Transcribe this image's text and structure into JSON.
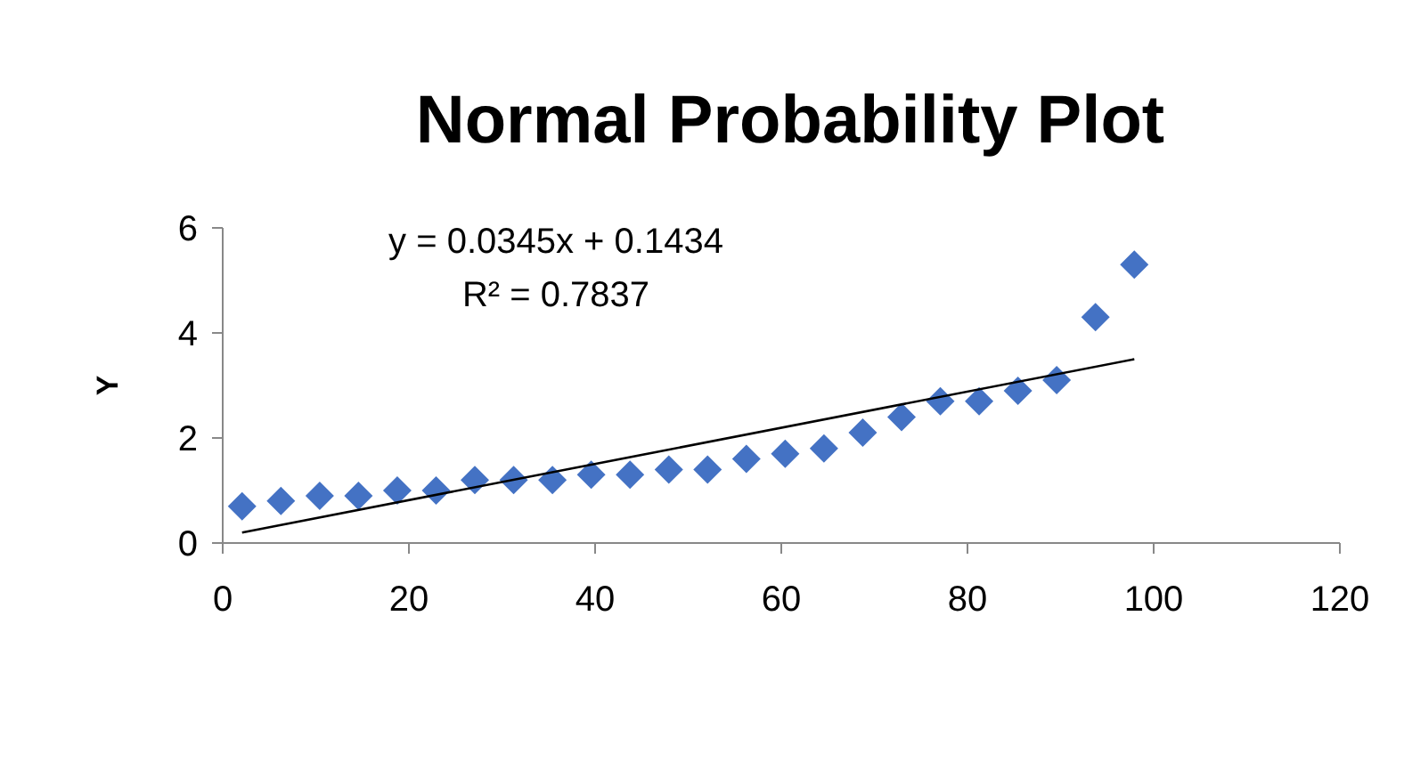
{
  "chart_data": {
    "type": "scatter",
    "title": "Normal Probability Plot",
    "ylabel": "Y",
    "xlim": [
      0,
      120
    ],
    "xticks": [
      0,
      20,
      40,
      60,
      80,
      100,
      120
    ],
    "ylim": [
      0,
      6
    ],
    "yticks": [
      0,
      2,
      4,
      6
    ],
    "grid": false,
    "marker": "diamond",
    "series": [
      {
        "color": "#4472c4",
        "x": [
          2.08,
          6.25,
          10.42,
          14.58,
          18.75,
          22.92,
          27.08,
          31.25,
          35.42,
          39.58,
          43.75,
          47.92,
          52.08,
          56.25,
          60.42,
          64.58,
          68.75,
          72.92,
          77.08,
          81.25,
          85.42,
          89.58,
          93.75,
          97.92
        ],
        "values": [
          0.7,
          0.8,
          0.9,
          0.9,
          1.0,
          1.0,
          1.2,
          1.2,
          1.2,
          1.3,
          1.3,
          1.4,
          1.4,
          1.6,
          1.7,
          1.8,
          2.1,
          2.4,
          2.7,
          2.7,
          2.9,
          3.1,
          4.3,
          5.3
        ]
      },
      {
        "type": "line",
        "color": "#000000",
        "marker": "none",
        "x": [
          2.08,
          97.92
        ],
        "values": [
          0.2,
          3.5
        ]
      }
    ],
    "annotations": [
      "y = 0.0345x + 0.1434",
      "R² = 0.7837"
    ]
  }
}
